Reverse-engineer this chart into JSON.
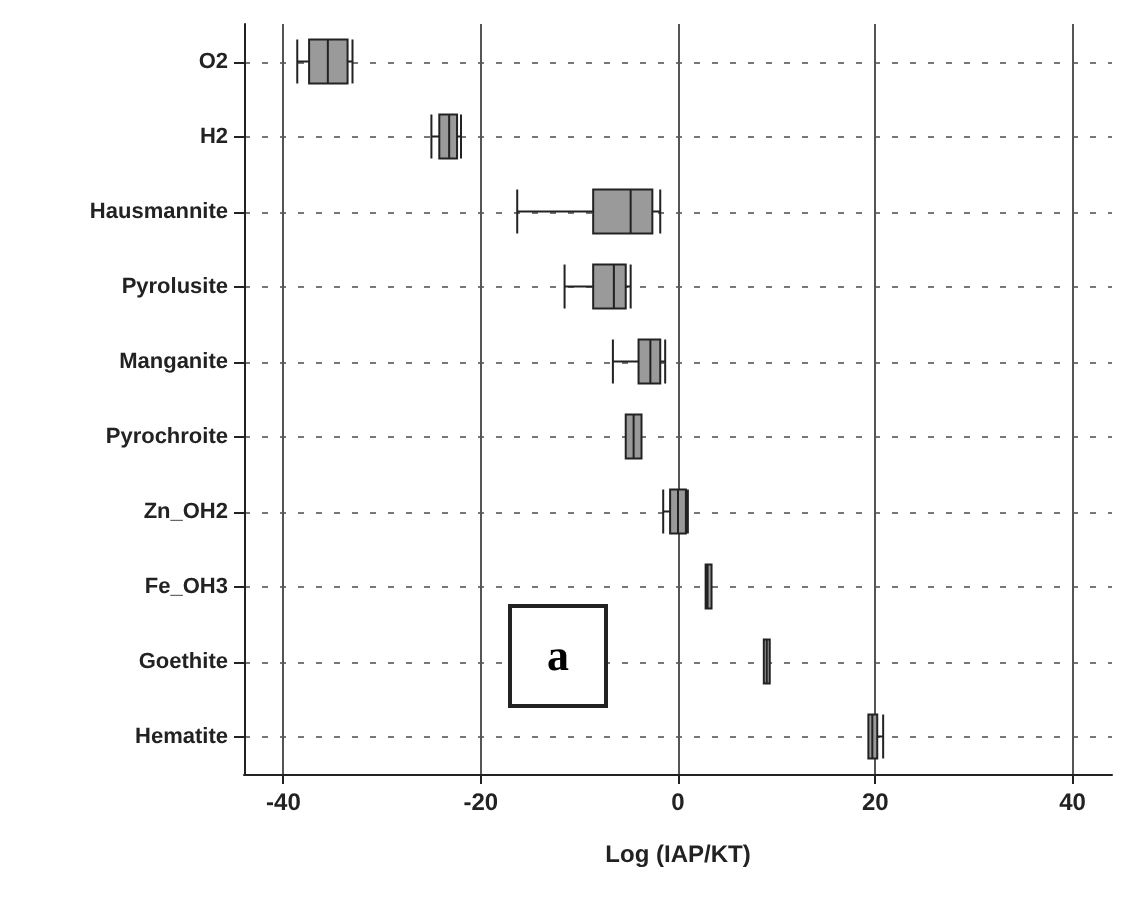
{
  "chart_data": {
    "type": "box",
    "orientation": "horizontal",
    "xlabel": "Log (IAP/KT)",
    "categories": [
      "O2",
      "H2",
      "Hausmannite",
      "Pyrolusite",
      "Manganite",
      "Pyrochroite",
      "Zn_OH2",
      "Fe_OH3",
      "Goethite",
      "Hematite"
    ],
    "boxes": [
      {
        "low": -38.6,
        "q1": -37.4,
        "median": -35.5,
        "q3": -33.5,
        "high": -33
      },
      {
        "low": -25,
        "q1": -24.2,
        "median": -23.2,
        "q3": -22.4,
        "high": -22
      },
      {
        "low": -16.3,
        "q1": -8.6,
        "median": -4.8,
        "q3": -2.6,
        "high": -1.8
      },
      {
        "low": -11.5,
        "q1": -8.6,
        "median": -6.5,
        "q3": -5.3,
        "high": -4.8
      },
      {
        "low": -6.6,
        "q1": -4,
        "median": -2.8,
        "q3": -1.8,
        "high": -1.3
      },
      {
        "low": -5.3,
        "q1": -5.3,
        "median": -4.5,
        "q3": -3.7,
        "high": -3.7
      },
      {
        "low": -1.5,
        "q1": -0.8,
        "median": 0,
        "q3": 0.8,
        "high": 1
      },
      {
        "low": 2.8,
        "q1": 2.8,
        "median": 3,
        "q3": 3.4,
        "high": 3.4
      },
      {
        "low": 8.7,
        "q1": 8.7,
        "median": 9,
        "q3": 9.3,
        "high": 9.3
      },
      {
        "low": 19.3,
        "q1": 19.3,
        "median": 19.7,
        "q3": 20.2,
        "high": 20.8
      }
    ],
    "color": "#9a9a9a",
    "xlim": [
      -44,
      44
    ],
    "xticks": [
      -40,
      -20,
      0,
      20,
      40
    ],
    "grid": true,
    "annotations": [
      "a"
    ]
  }
}
